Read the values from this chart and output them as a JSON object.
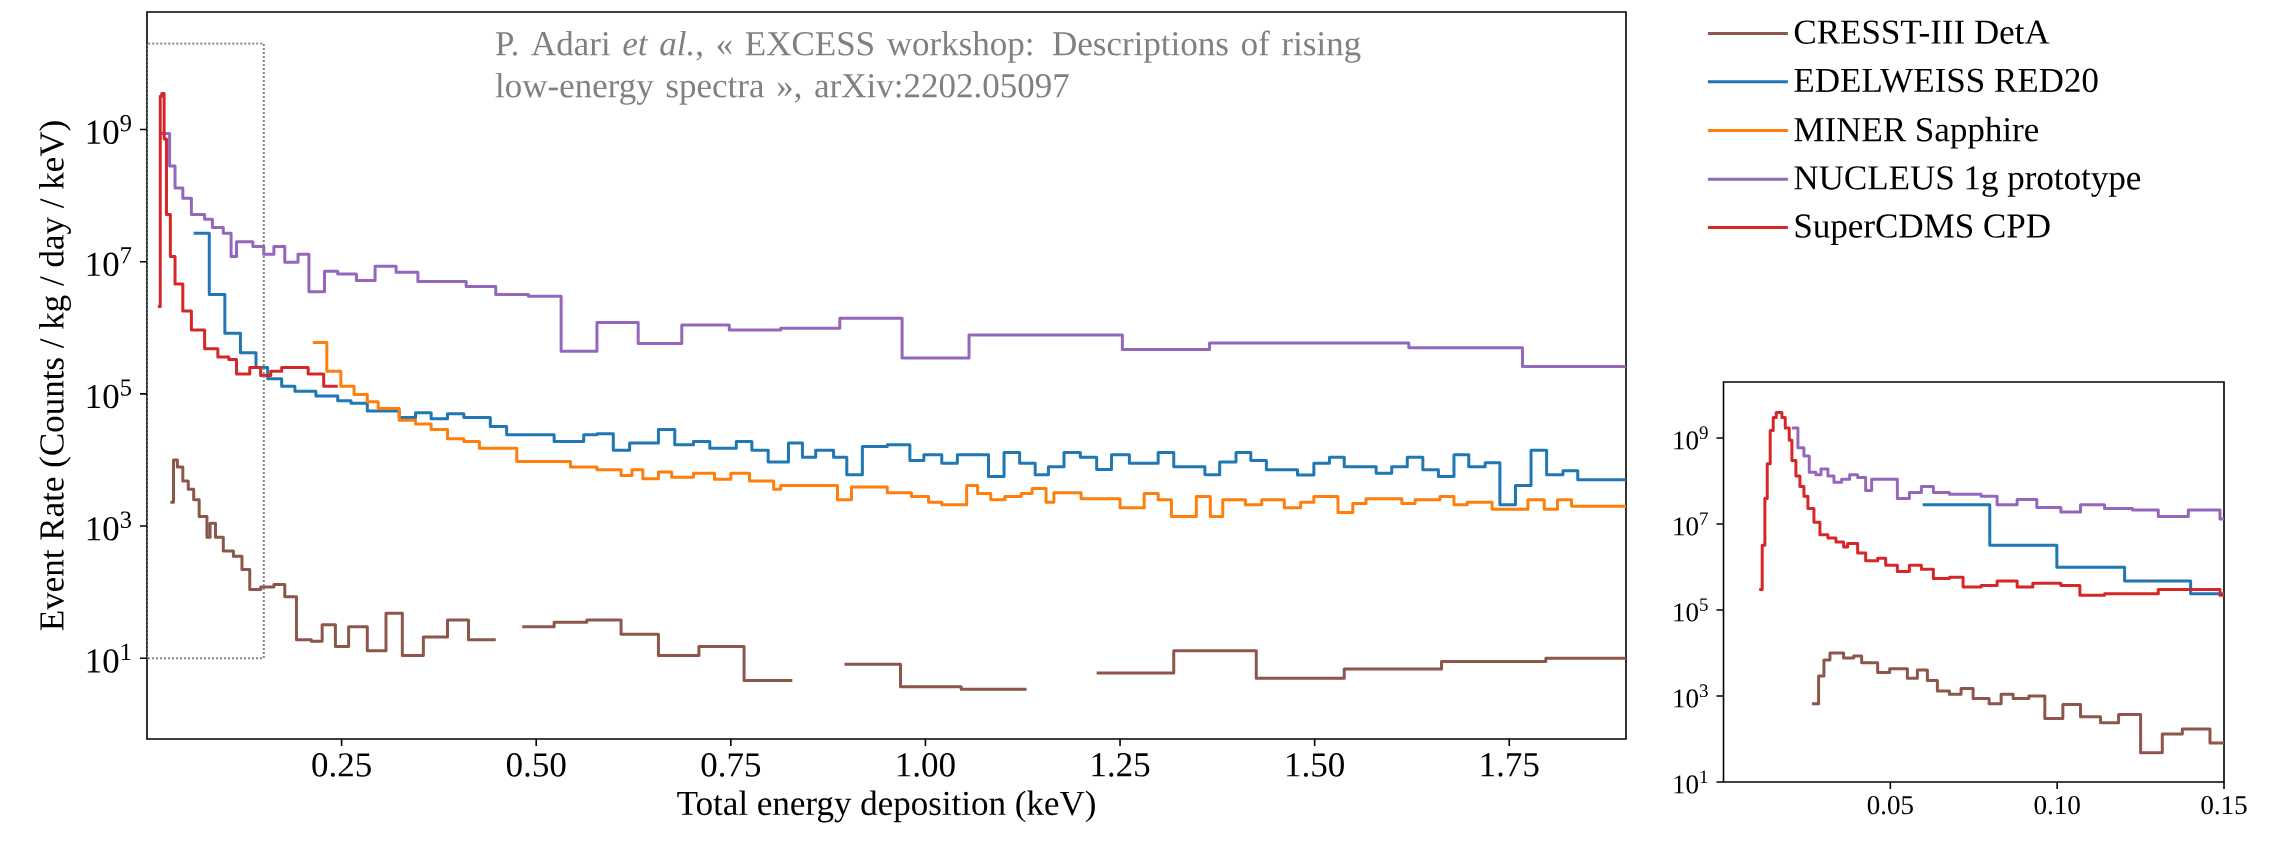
{
  "chart_data": [
    {
      "type": "step",
      "xlabel": "Total energy deposition (keV)",
      "ylabel": "Event Rate (Counts / kg / day / keV)",
      "xlim": [
        0,
        1.9
      ],
      "ylim": [
        0.6,
        60000000000.0
      ],
      "log": "y",
      "legend": "top right",
      "xticks": [
        {
          "value": 0.25,
          "label": "0.25"
        },
        {
          "value": 0.5,
          "label": "0.50"
        },
        {
          "value": 0.75,
          "label": "0.75"
        },
        {
          "value": 1.0,
          "label": "1.00"
        },
        {
          "value": 1.25,
          "label": "1.25"
        },
        {
          "value": 1.5,
          "label": "1.50"
        },
        {
          "value": 1.75,
          "label": "1.75"
        }
      ],
      "yticks": [
        {
          "value": 10,
          "label": "10$^{1}$"
        },
        {
          "value": 1000,
          "label": "10$^{3}$"
        },
        {
          "value": 100000,
          "label": "10$^{5}$"
        },
        {
          "value": 10000000,
          "label": "10$^{7}$"
        },
        {
          "value": 1000000000,
          "label": "10$^{9}$"
        }
      ],
      "annotations": [
        "P. Adari *et al.*, « EXCESS workshop: Descriptions of rising low-energy spectra », arXiv:2202.05097"
      ],
      "series": [
        {
          "name": "CRESST-III DetA",
          "color": "#8c564b",
          "x": [
            0.03,
            0.034,
            0.039,
            0.046,
            0.053,
            0.06,
            0.067,
            0.077,
            0.081,
            0.088,
            0.098,
            0.111,
            0.122,
            0.132,
            0.146,
            0.163,
            0.177,
            0.192,
            0.211,
            0.225,
            0.242,
            0.259,
            0.283,
            0.307,
            0.328,
            0.355,
            0.386,
            0.413,
            0.448,
            0.482,
            0.523,
            0.565,
            0.609,
            0.657,
            0.709,
            0.767,
            0.829,
            0.896,
            0.968,
            1.046,
            1.13,
            1.22,
            1.319,
            1.425,
            1.538,
            1.663,
            1.797,
            1.9
          ],
          "values": [
            2300,
            10000,
            7800,
            4800,
            3600,
            2500,
            1400,
            680,
            1100,
            680,
            420,
            350,
            220,
            110,
            120,
            130,
            85,
            19,
            18,
            32,
            15,
            30,
            13,
            48,
            11,
            21,
            38,
            19,
            null,
            30,
            35,
            38,
            23,
            11,
            15,
            4.6,
            null,
            8.1,
            3.7,
            3.4,
            null,
            6,
            13,
            5,
            6.9,
            8.9,
            10,
            10
          ]
        },
        {
          "name": "EDELWEISS RED20",
          "color": "#1f77b4",
          "x": [
            0.06,
            0.08,
            0.1,
            0.12,
            0.14,
            0.155,
            0.173,
            0.19,
            0.217,
            0.245,
            0.262,
            0.283,
            0.324,
            0.345,
            0.365,
            0.386,
            0.407,
            0.441,
            0.462,
            0.523,
            0.561,
            0.578,
            0.599,
            0.62,
            0.657,
            0.678,
            0.702,
            0.723,
            0.757,
            0.777,
            0.798,
            0.824,
            0.842,
            0.859,
            0.882,
            0.899,
            0.919,
            0.951,
            0.98,
            0.998,
            1.021,
            1.041,
            1.081,
            1.101,
            1.121,
            1.141,
            1.158,
            1.178,
            1.199,
            1.22,
            1.239,
            1.262,
            1.299,
            1.319,
            1.359,
            1.378,
            1.399,
            1.418,
            1.438,
            1.478,
            1.499,
            1.519,
            1.538,
            1.579,
            1.599,
            1.619,
            1.639,
            1.659,
            1.679,
            1.698,
            1.719,
            1.738,
            1.758,
            1.778,
            1.798,
            1.819,
            1.838,
            1.9
          ],
          "values": [
            27000000.0,
            3200000.0,
            830000.0,
            420000.0,
            250000.0,
            170000.0,
            130000.0,
            110000.0,
            93000.0,
            79000.0,
            72000.0,
            55000.0,
            44000.0,
            52000.0,
            42000.0,
            50000.0,
            44000.0,
            32000.0,
            24000.0,
            19000.0,
            24000.0,
            25000.0,
            14000.0,
            18000.0,
            29000.0,
            17000.0,
            19000.0,
            15000.0,
            19000.0,
            14000.0,
            9300.0,
            18000.0,
            11000.0,
            14000.0,
            11000.0,
            6000.0,
            16000.0,
            17000.0,
            9800.0,
            12000.0,
            8900.0,
            12000.0,
            5600.0,
            13000.0,
            8900.0,
            6000.0,
            7900.0,
            13000.0,
            11000.0,
            7200.0,
            12000.0,
            8900.0,
            13000.0,
            7900.0,
            6000.0,
            9300.0,
            13000.0,
            9800.0,
            7100.0,
            5900.0,
            8900.0,
            11000.0,
            7900.0,
            6300.0,
            7900.0,
            11000.0,
            7100.0,
            5600.0,
            12000.0,
            7900.0,
            9100.0,
            2100.0,
            4100.0,
            14000.0,
            6000.0,
            6900.0,
            5000.0,
            5000.0
          ]
        },
        {
          "name": "MINER Sapphire",
          "color": "#ff7f0e",
          "x": [
            0.213,
            0.231,
            0.249,
            0.266,
            0.283,
            0.297,
            0.324,
            0.345,
            0.365,
            0.386,
            0.407,
            0.427,
            0.475,
            0.544,
            0.578,
            0.609,
            0.623,
            0.637,
            0.657,
            0.674,
            0.702,
            0.729,
            0.75,
            0.774,
            0.805,
            0.814,
            0.887,
            0.905,
            0.951,
            0.982,
            1.004,
            1.021,
            1.053,
            1.067,
            1.084,
            1.102,
            1.123,
            1.137,
            1.155,
            1.165,
            1.2,
            1.25,
            1.281,
            1.299,
            1.316,
            1.348,
            1.366,
            1.382,
            1.411,
            1.432,
            1.461,
            1.482,
            1.499,
            1.53,
            1.549,
            1.566,
            1.612,
            1.629,
            1.661,
            1.679,
            1.696,
            1.728,
            1.774,
            1.795,
            1.812,
            1.83,
            1.9
          ],
          "values": [
            600000.0,
            220000.0,
            130000.0,
            98000.0,
            76000.0,
            60000.0,
            40000.0,
            35000.0,
            29000.0,
            21000.0,
            19000.0,
            15000.0,
            9500.0,
            7800.0,
            7100.0,
            5800.0,
            7100.0,
            5200.0,
            6600.0,
            5500.0,
            6300.0,
            5100.0,
            6300.0,
            4800.0,
            3600.0,
            4100.0,
            2500.0,
            3900.0,
            3200.0,
            2800.0,
            2300.0,
            2100.0,
            4100.0,
            3100.0,
            2500.0,
            2800.0,
            3100.0,
            3700.0,
            2300.0,
            3200.0,
            2600.0,
            1900.0,
            3100.0,
            2500.0,
            1400.0,
            2800.0,
            1400.0,
            2500.0,
            2100.0,
            2500.0,
            1900.0,
            2300.0,
            2800.0,
            1600.0,
            2200.0,
            2600.0,
            2200.0,
            2500.0,
            2800.0,
            2100.0,
            2300.0,
            1800.0,
            2500.0,
            1800.0,
            2500.0,
            2000.0,
            2000.0
          ]
        },
        {
          "name": "NUCLEUS 1g prototype",
          "color": "#9467bd",
          "x": [
            0.018,
            0.029,
            0.036,
            0.046,
            0.057,
            0.074,
            0.084,
            0.098,
            0.108,
            0.115,
            0.136,
            0.15,
            0.163,
            0.177,
            0.194,
            0.208,
            0.228,
            0.245,
            0.269,
            0.293,
            0.32,
            0.348,
            0.41,
            0.448,
            0.49,
            0.532,
            0.578,
            0.631,
            0.687,
            0.748,
            0.814,
            0.89,
            0.97,
            1.056,
            1.253,
            1.365,
            1.621,
            1.767,
            1.9
          ],
          "values": [
            870000000.0,
            280000000.0,
            130000000.0,
            91000000.0,
            52000000.0,
            44000000.0,
            33000000.0,
            27000000.0,
            12000000.0,
            20000000.0,
            17000000.0,
            13000000.0,
            17000000.0,
            9800000.0,
            13000000.0,
            3500000.0,
            7200000.0,
            6500000.0,
            5200000.0,
            8500000.0,
            6900000.0,
            5000000.0,
            4200000.0,
            3200000.0,
            3000000.0,
            440000.0,
            1200000.0,
            580000.0,
            1100000.0,
            930000.0,
            980000.0,
            1400000.0,
            350000.0,
            780000.0,
            470000.0,
            590000.0,
            500000.0,
            260000.0,
            260000.0
          ]
        },
        {
          "name": "SuperCDMS CPD",
          "color": "#d62728",
          "x": [
            0.014,
            0.017,
            0.019,
            0.022,
            0.025,
            0.03,
            0.036,
            0.046,
            0.057,
            0.074,
            0.091,
            0.105,
            0.115,
            0.132,
            0.146,
            0.159,
            0.173,
            0.207,
            0.227,
            0.245
          ],
          "values": [
            2100000.0,
            3200000000.0,
            3500000000.0,
            720000000.0,
            52000000.0,
            12000000.0,
            4600000.0,
            1800000.0,
            930000.0,
            480000.0,
            360000.0,
            330000.0,
            200000.0,
            250000.0,
            190000.0,
            220000.0,
            250000.0,
            200000.0,
            130000.0,
            130000.0
          ]
        }
      ]
    },
    {
      "type": "step",
      "xlim": [
        0,
        0.15
      ],
      "ylim": [
        10,
        20000000000.0
      ],
      "log": "y",
      "xticks": [
        {
          "value": 0.05,
          "label": "0.05"
        },
        {
          "value": 0.1,
          "label": "0.10"
        },
        {
          "value": 0.15,
          "label": "0.15"
        }
      ],
      "yticks": [
        {
          "value": 10,
          "label": "10$^{1}$"
        },
        {
          "value": 1000,
          "label": "10$^{3}$"
        },
        {
          "value": 100000,
          "label": "10$^{5}$"
        },
        {
          "value": 10000000,
          "label": "10$^{7}$"
        },
        {
          "value": 1000000000,
          "label": "10$^{9}$"
        }
      ],
      "series": [
        {
          "color": "#8c564b",
          "x": [
            0.0265,
            0.0285,
            0.0301,
            0.0319,
            0.036,
            0.039,
            0.0414,
            0.0462,
            0.0498,
            0.0551,
            0.0581,
            0.0611,
            0.0641,
            0.0677,
            0.0712,
            0.0748,
            0.0796,
            0.0832,
            0.0868,
            0.0915,
            0.0963,
            0.1017,
            0.107,
            0.113,
            0.1184,
            0.125,
            0.1315,
            0.1375,
            0.1458,
            0.15
          ],
          "values": [
            660,
            2900,
            6900,
            10000,
            7600,
            8500,
            5900,
            3500,
            4300,
            2600,
            4000,
            2300,
            1300,
            1100,
            1500,
            870,
            660,
            1100,
            870,
            1000,
            300,
            630,
            330,
            240,
            370,
            48,
            130,
            170,
            81,
            81
          ]
        },
        {
          "color": "#1f77b4",
          "x": [
            0.0597,
            0.0798,
            0.0999,
            0.1202,
            0.14,
            0.15
          ],
          "values": [
            28000000.0,
            3200000.0,
            980000.0,
            470000.0,
            240000.0,
            240000.0
          ]
        },
        {
          "color": "#9467bd",
          "x": [
            0.0205,
            0.0223,
            0.0241,
            0.0257,
            0.0277,
            0.0292,
            0.0313,
            0.0331,
            0.0354,
            0.0378,
            0.0402,
            0.0426,
            0.0444,
            0.0486,
            0.0521,
            0.0557,
            0.0593,
            0.0629,
            0.0677,
            0.0772,
            0.082,
            0.088,
            0.0939,
            0.1011,
            0.107,
            0.1142,
            0.1226,
            0.1303,
            0.1393,
            0.1488,
            0.15
          ],
          "values": [
            1700000000.0,
            590000000.0,
            380000000.0,
            160000000.0,
            140000000.0,
            190000000.0,
            130000000.0,
            93000000.0,
            110000000.0,
            140000000.0,
            120000000.0,
            60000000.0,
            110000000.0,
            110000000.0,
            39000000.0,
            54000000.0,
            74000000.0,
            54000000.0,
            49000000.0,
            44000000.0,
            28000000.0,
            37000000.0,
            24000000.0,
            19000000.0,
            28000000.0,
            23000000.0,
            21000000.0,
            15000000.0,
            21000000.0,
            13000000.0,
            13000000.0
          ]
        },
        {
          "color": "#d62728",
          "x": [
            0.0107,
            0.0116,
            0.0124,
            0.0131,
            0.014,
            0.0149,
            0.0158,
            0.0175,
            0.0185,
            0.0197,
            0.0205,
            0.0217,
            0.0229,
            0.0241,
            0.0253,
            0.0271,
            0.0289,
            0.0313,
            0.0337,
            0.036,
            0.0372,
            0.0402,
            0.0426,
            0.0462,
            0.0486,
            0.0521,
            0.0557,
            0.0593,
            0.0629,
            0.0677,
            0.0718,
            0.0772,
            0.082,
            0.088,
            0.0927,
            0.1011,
            0.1068,
            0.1142,
            0.1303,
            0.1488,
            0.15
          ],
          "values": [
            300000.0,
            3200000.0,
            39000000.0,
            250000000.0,
            1500000000.0,
            3000000000.0,
            3900000000.0,
            3000000000.0,
            1700000000.0,
            890000000.0,
            300000000.0,
            130000000.0,
            74000000.0,
            44000000.0,
            23000000.0,
            11000000.0,
            5600000.0,
            4700000.0,
            3800000.0,
            2900000.0,
            3500000.0,
            2100000.0,
            1400000.0,
            1600000.0,
            1100000.0,
            790000.0,
            1100000.0,
            890000.0,
            540000.0,
            580000.0,
            340000.0,
            370000.0,
            470000.0,
            340000.0,
            420000.0,
            370000.0,
            220000.0,
            240000.0,
            300000.0,
            220000.0,
            220000.0
          ]
        }
      ]
    }
  ]
}
